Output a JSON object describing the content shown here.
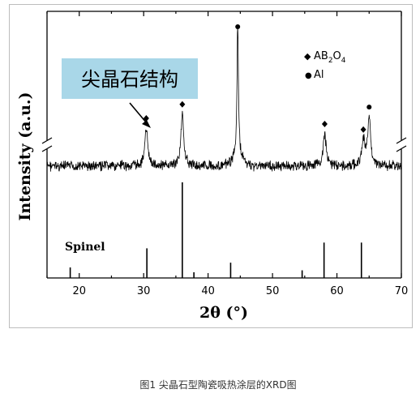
{
  "chart_data": [
    {
      "type": "line",
      "panel": "measured XRD pattern",
      "xlabel": "2θ (°)",
      "ylabel": "Intensity (a.u.)",
      "xlim": [
        15,
        70
      ],
      "x_ticks": [
        "20",
        "30",
        "40",
        "50",
        "60",
        "70"
      ],
      "y_axis_broken": true,
      "grid": false,
      "annotation_box": "尖晶石结构",
      "peaks": [
        {
          "x": 30.4,
          "y": 0.26,
          "marker": "diamond"
        },
        {
          "x": 36.0,
          "y": 0.36,
          "marker": "diamond"
        },
        {
          "x": 44.6,
          "y": 1.0,
          "marker": "dot"
        },
        {
          "x": 58.1,
          "y": 0.22,
          "marker": "diamond"
        },
        {
          "x": 64.1,
          "y": 0.18,
          "marker": "diamond"
        },
        {
          "x": 65.0,
          "y": 0.34,
          "marker": "dot"
        }
      ],
      "legend": [
        {
          "symbol": "◆",
          "label_main": "AB",
          "sub1": "2",
          "label_mid": "O",
          "sub2": "4"
        },
        {
          "symbol": "●",
          "label": "Al"
        }
      ]
    },
    {
      "type": "bar",
      "panel": "reference stick pattern",
      "label": "Spinel",
      "x": [
        18.6,
        30.5,
        36.0,
        37.8,
        43.5,
        54.6,
        58.0,
        63.8
      ],
      "values": [
        0.11,
        0.31,
        1.0,
        0.06,
        0.16,
        0.08,
        0.37,
        0.37
      ]
    }
  ],
  "caption": "图1  尖晶石型陶瓷吸热涂层的XRD图"
}
